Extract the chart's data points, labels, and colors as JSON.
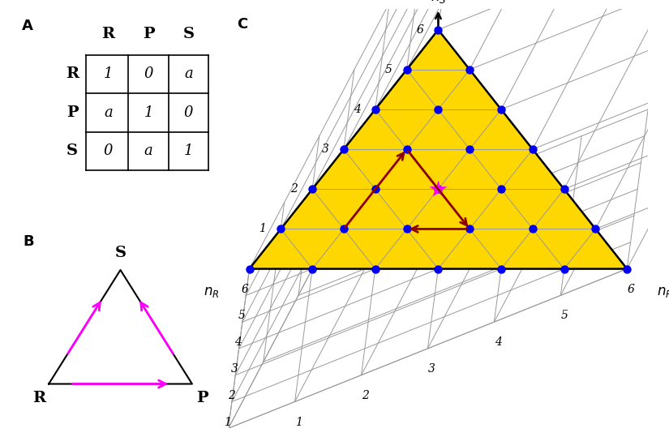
{
  "title_A": "A",
  "title_B": "B",
  "title_C": "C",
  "matrix_rows": [
    "R",
    "P",
    "S"
  ],
  "matrix_cols": [
    "R",
    "P",
    "S"
  ],
  "matrix_data": [
    [
      "1",
      "0",
      "a"
    ],
    [
      "a",
      "1",
      "0"
    ],
    [
      "0",
      "a",
      "1"
    ]
  ],
  "N": 6,
  "dot_color": "#0000ee",
  "yellow_color": "#FFD700",
  "arrow_color": "#8B0000",
  "star_color": "#FF00FF",
  "bg_color": "#ffffff",
  "grid_color": "#999999",
  "wall_color": "#cccccc"
}
